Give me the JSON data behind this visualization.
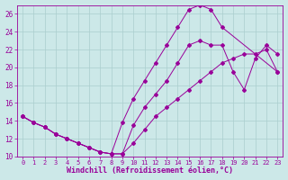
{
  "xlabel": "Windchill (Refroidissement éolien,°C)",
  "background_color": "#cce8e8",
  "line_color": "#990099",
  "xlim": [
    -0.5,
    23.5
  ],
  "ylim": [
    10,
    27
  ],
  "xticks": [
    0,
    1,
    2,
    3,
    4,
    5,
    6,
    7,
    8,
    9,
    10,
    11,
    12,
    13,
    14,
    15,
    16,
    17,
    18,
    19,
    20,
    21,
    22,
    23
  ],
  "yticks": [
    10,
    12,
    14,
    16,
    18,
    20,
    22,
    24,
    26
  ],
  "grid_color": "#aacece",
  "curve_top_x": [
    0,
    1,
    2,
    3,
    4,
    5,
    6,
    7,
    8,
    9,
    10,
    11,
    12,
    13,
    14,
    15,
    16,
    17,
    18,
    23
  ],
  "curve_top_y": [
    14.5,
    13.8,
    13.3,
    12.5,
    12.0,
    11.5,
    11.0,
    10.5,
    10.3,
    13.8,
    16.5,
    18.5,
    20.5,
    22.5,
    24.5,
    26.5,
    27.0,
    26.5,
    24.5,
    19.5
  ],
  "curve_mid_x": [
    0,
    1,
    2,
    3,
    4,
    5,
    6,
    7,
    8,
    9,
    10,
    11,
    12,
    13,
    14,
    15,
    16,
    17,
    18,
    19,
    20,
    21,
    22,
    23
  ],
  "curve_mid_y": [
    14.5,
    13.8,
    13.3,
    12.5,
    12.0,
    11.5,
    11.0,
    10.5,
    10.3,
    10.3,
    13.5,
    15.5,
    17.0,
    18.5,
    20.5,
    22.5,
    23.0,
    22.5,
    22.5,
    19.5,
    17.5,
    21.0,
    22.5,
    21.5
  ],
  "curve_bot_x": [
    0,
    1,
    2,
    3,
    4,
    5,
    6,
    7,
    8,
    9,
    10,
    11,
    12,
    13,
    14,
    15,
    16,
    17,
    18,
    19,
    20,
    21,
    22,
    23
  ],
  "curve_bot_y": [
    14.5,
    13.8,
    13.3,
    12.5,
    12.0,
    11.5,
    11.0,
    10.5,
    10.3,
    10.3,
    11.5,
    13.0,
    14.5,
    15.5,
    16.5,
    17.5,
    18.5,
    19.5,
    20.5,
    21.0,
    21.5,
    21.5,
    22.0,
    19.5
  ]
}
